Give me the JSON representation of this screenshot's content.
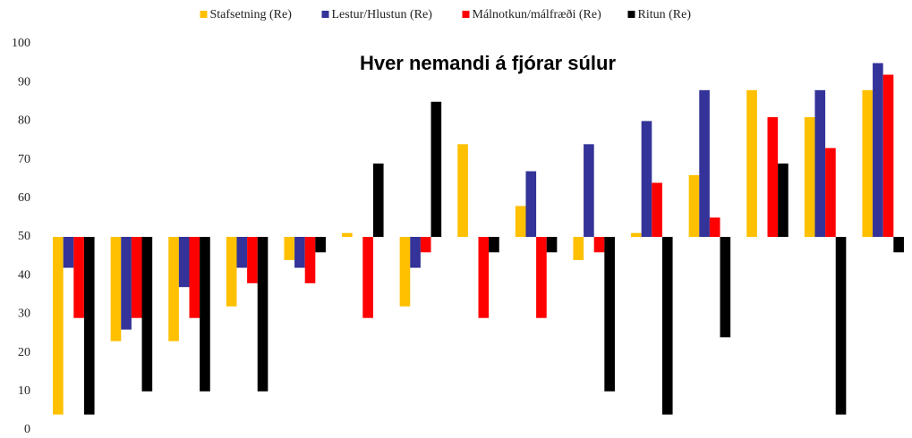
{
  "chart_data": {
    "type": "bar",
    "title": "Hver nemandi á fjórar súlur",
    "categories": [
      null,
      null,
      null,
      null,
      null,
      null,
      null,
      null,
      null,
      null,
      null,
      null,
      null,
      null,
      null
    ],
    "series": [
      {
        "name": "Stafsetning (Re)",
        "color": "#ffc000",
        "values": [
          4,
          23,
          23,
          32,
          44,
          51,
          32,
          74,
          58,
          44,
          51,
          66,
          88,
          81,
          88
        ]
      },
      {
        "name": "Lestur/Hlustun (Re)",
        "color": "#333399",
        "values": [
          42,
          26,
          37,
          42,
          42,
          50,
          42,
          50,
          67,
          74,
          80,
          88,
          50,
          88,
          95
        ]
      },
      {
        "name": "Málnotkun/málfræði (Re)",
        "color": "#ff0000",
        "values": [
          29,
          29,
          29,
          38,
          38,
          29,
          46,
          29,
          29,
          46,
          64,
          55,
          81,
          73,
          92
        ]
      },
      {
        "name": "Ritun (Re)",
        "color": "#000000",
        "values": [
          4,
          10,
          10,
          10,
          46,
          69,
          85,
          46,
          46,
          10,
          4,
          24,
          69,
          4,
          46
        ]
      }
    ],
    "baseline": 50,
    "ylim": [
      0,
      100
    ],
    "yticks": [
      0,
      10,
      20,
      30,
      40,
      50,
      60,
      70,
      80,
      90,
      100
    ],
    "grid": false,
    "legend": "top"
  }
}
